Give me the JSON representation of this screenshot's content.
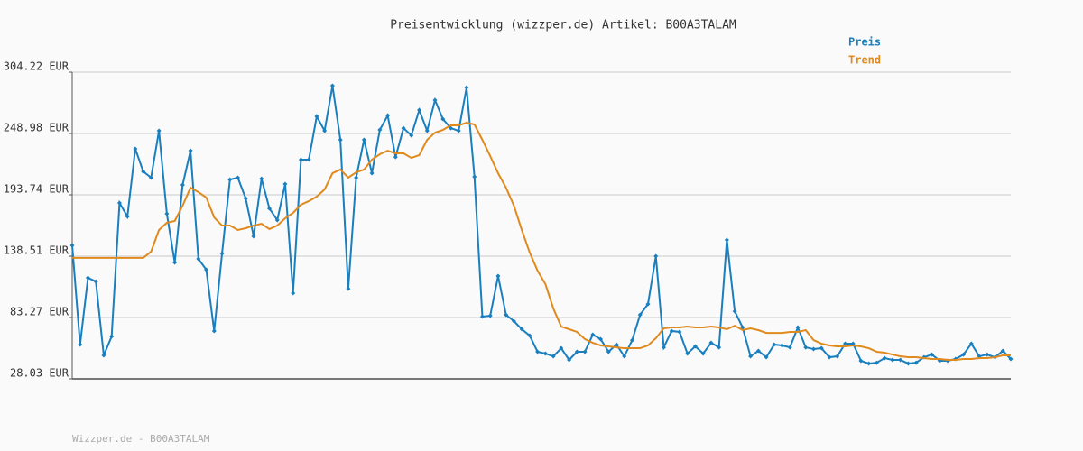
{
  "chart_data": {
    "type": "line",
    "title": "Preisentwicklung (wizzper.de) Artikel: B00A3TALAM",
    "footer": "Wizzper.de - B00A3TALAM",
    "ylim": [
      28.03,
      304.22
    ],
    "yticks": [
      {
        "value": 28.03,
        "label": "28.03 EUR"
      },
      {
        "value": 83.27,
        "label": "83.27 EUR"
      },
      {
        "value": 138.51,
        "label": "138.51 EUR"
      },
      {
        "value": 193.74,
        "label": "193.74 EUR"
      },
      {
        "value": 248.98,
        "label": "248.98 EUR"
      },
      {
        "value": 304.22,
        "label": "304.22 EUR"
      }
    ],
    "grid": true,
    "legend": "top-right",
    "series": [
      {
        "name": "Preis",
        "color": "#1a7fbf",
        "markers": true,
        "values": [
          148.3,
          58.9,
          119.0,
          115.7,
          49.1,
          66.2,
          186.4,
          174.2,
          235.2,
          214.8,
          209.2,
          251.4,
          176.7,
          132.8,
          202.7,
          233.5,
          136.1,
          126.3,
          71.1,
          140.9,
          207.5,
          209.2,
          190.5,
          156.4,
          208.3,
          181.5,
          171.0,
          203.5,
          105.2,
          225.4,
          225.4,
          264.4,
          251.4,
          292.0,
          243.3,
          109.2,
          209.2,
          243.3,
          213.2,
          252.2,
          265.2,
          227.8,
          253.8,
          247.3,
          270.1,
          251.4,
          279.0,
          262.0,
          253.8,
          251.4,
          290.4,
          210.0,
          84.1,
          84.9,
          120.6,
          85.7,
          80.0,
          72.7,
          67.0,
          52.4,
          50.8,
          48.3,
          55.6,
          45.1,
          52.4,
          52.4,
          67.8,
          63.8,
          52.4,
          58.9,
          48.3,
          62.9,
          85.7,
          95.4,
          138.5,
          56.4,
          71.1,
          70.3,
          50.8,
          57.3,
          50.8,
          60.5,
          56.4,
          153.1,
          88.9,
          74.3,
          48.3,
          53.2,
          47.5,
          58.9,
          58.1,
          56.4,
          74.3,
          56.4,
          54.8,
          55.6,
          47.5,
          48.3,
          59.7,
          59.7,
          44.3,
          41.8,
          42.6,
          46.7,
          45.1,
          45.1,
          41.8,
          42.6,
          47.5,
          49.9,
          44.3,
          44.3,
          45.9,
          49.9,
          59.7,
          48.3,
          49.9,
          47.5,
          53.2,
          45.9
        ]
      },
      {
        "name": "Trend",
        "color": "#e08a1e",
        "markers": false,
        "values": [
          137.0,
          137.0,
          137.0,
          137.0,
          137.0,
          137.0,
          137.0,
          137.0,
          137.0,
          137.0,
          142.6,
          162.1,
          168.6,
          170.2,
          184.0,
          200.2,
          196.2,
          191.3,
          173.4,
          166.1,
          166.1,
          162.1,
          163.7,
          166.1,
          167.7,
          162.9,
          166.1,
          172.6,
          177.5,
          184.8,
          188.1,
          192.1,
          198.6,
          213.2,
          216.5,
          209.2,
          214.0,
          216.5,
          225.4,
          230.3,
          233.5,
          231.1,
          231.1,
          227.0,
          229.5,
          243.3,
          249.8,
          252.2,
          256.3,
          256.3,
          258.7,
          257.1,
          243.3,
          228.6,
          213.2,
          200.2,
          184.0,
          162.1,
          141.8,
          125.5,
          113.3,
          91.4,
          75.1,
          72.7,
          70.3,
          63.8,
          60.5,
          58.1,
          57.3,
          56.4,
          55.6,
          55.6,
          55.6,
          58.1,
          64.6,
          73.5,
          74.3,
          74.3,
          75.1,
          74.3,
          74.3,
          75.1,
          74.3,
          72.7,
          75.9,
          71.9,
          73.5,
          71.9,
          69.4,
          69.4,
          69.4,
          70.3,
          70.3,
          71.9,
          62.9,
          59.7,
          58.1,
          57.3,
          57.3,
          58.1,
          57.3,
          55.6,
          52.4,
          51.6,
          49.9,
          48.3,
          47.5,
          47.5,
          46.7,
          45.9,
          45.9,
          45.1,
          45.1,
          45.9,
          45.9,
          46.7,
          46.7,
          47.5,
          49.1,
          49.1
        ]
      }
    ]
  }
}
